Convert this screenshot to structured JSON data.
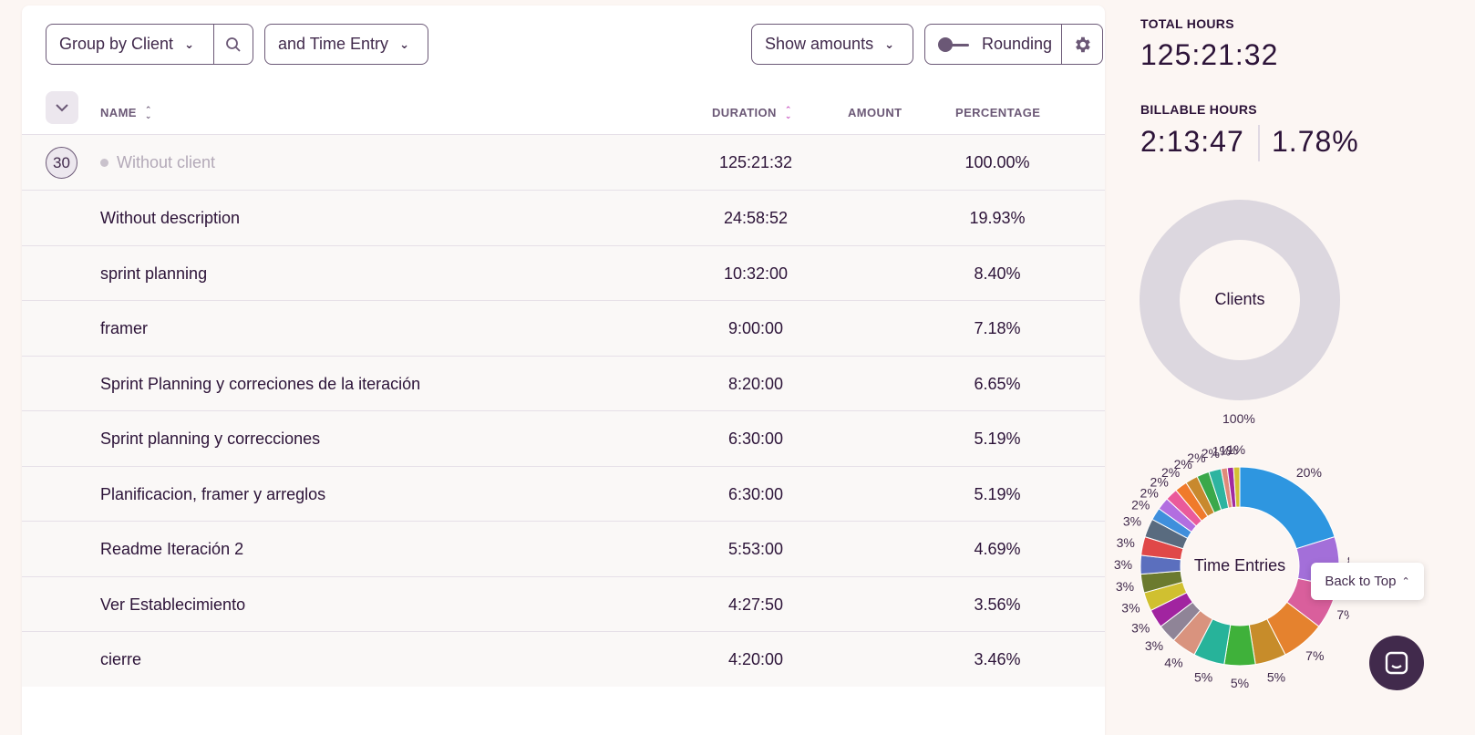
{
  "toolbar": {
    "group_by": "Group by Client",
    "sub_group": "and Time Entry",
    "show_amounts": "Show amounts",
    "rounding": "Rounding"
  },
  "table": {
    "headers": {
      "name": "NAME",
      "duration": "DURATION",
      "amount": "AMOUNT",
      "percentage": "PERCENTAGE"
    },
    "client_row": {
      "count": "30",
      "name": "Without client",
      "duration": "125:21:32",
      "percentage": "100.00%"
    },
    "rows": [
      {
        "name": "Without description",
        "duration": "24:58:52",
        "percentage": "19.93%"
      },
      {
        "name": "sprint planning",
        "duration": "10:32:00",
        "percentage": "8.40%"
      },
      {
        "name": "framer",
        "duration": "9:00:00",
        "percentage": "7.18%"
      },
      {
        "name": "Sprint Planning y correciones de la iteración",
        "duration": "8:20:00",
        "percentage": "6.65%"
      },
      {
        "name": "Sprint planning y correcciones",
        "duration": "6:30:00",
        "percentage": "5.19%"
      },
      {
        "name": "Planificacion, framer y arreglos",
        "duration": "6:30:00",
        "percentage": "5.19%"
      },
      {
        "name": "Readme Iteración 2",
        "duration": "5:53:00",
        "percentage": "4.69%"
      },
      {
        "name": "Ver Establecimiento",
        "duration": "4:27:50",
        "percentage": "3.56%"
      },
      {
        "name": "cierre",
        "duration": "4:20:00",
        "percentage": "3.46%"
      }
    ]
  },
  "summary": {
    "total_label": "TOTAL HOURS",
    "total_value": "125:21:32",
    "billable_label": "BILLABLE HOURS",
    "billable_value": "2:13:47",
    "billable_pct": "1.78%"
  },
  "charts": {
    "clients": {
      "center": "Clients",
      "label": "100%",
      "color": "#dcd7df"
    },
    "entries": {
      "center": "Time Entries",
      "slices": [
        {
          "value": 20,
          "color": "#2e96e0",
          "label": "20%"
        },
        {
          "value": 8,
          "color": "#a36fd9",
          "label": "8%"
        },
        {
          "value": 7,
          "color": "#d95f9c",
          "label": "7%"
        },
        {
          "value": 7,
          "color": "#e5822e",
          "label": "7%"
        },
        {
          "value": 5,
          "color": "#c78c2a",
          "label": "5%"
        },
        {
          "value": 5,
          "color": "#3fb13a",
          "label": "5%"
        },
        {
          "value": 5,
          "color": "#27b39a",
          "label": "5%"
        },
        {
          "value": 4,
          "color": "#d9937e",
          "label": "4%"
        },
        {
          "value": 3,
          "color": "#8f8497",
          "label": "3%"
        },
        {
          "value": 3,
          "color": "#a124a0",
          "label": "3%"
        },
        {
          "value": 3,
          "color": "#d0c030",
          "label": "3%"
        },
        {
          "value": 3,
          "color": "#6b7a2e",
          "label": "3%"
        },
        {
          "value": 3,
          "color": "#5b6fbe",
          "label": "3%"
        },
        {
          "value": 3,
          "color": "#e04848",
          "label": "3%"
        },
        {
          "value": 3,
          "color": "#596b7f",
          "label": "3%"
        },
        {
          "value": 2,
          "color": "#3f8fdc",
          "label": "2%"
        },
        {
          "value": 2,
          "color": "#b26ee0",
          "label": "2%"
        },
        {
          "value": 2,
          "color": "#ea5a9a",
          "label": "2%"
        },
        {
          "value": 2,
          "color": "#f07a2b",
          "label": "2%"
        },
        {
          "value": 2,
          "color": "#c8892e",
          "label": "2%"
        },
        {
          "value": 2,
          "color": "#3aa84a",
          "label": "2%"
        },
        {
          "value": 2,
          "color": "#2eb4a0",
          "label": "2%"
        },
        {
          "value": 1,
          "color": "#e08a7a",
          "label": "1%"
        },
        {
          "value": 1,
          "color": "#a12aa0",
          "label": "1%"
        },
        {
          "value": 1,
          "color": "#d3c034",
          "label": "1%"
        }
      ]
    }
  },
  "back_to_top": "Back to Top"
}
